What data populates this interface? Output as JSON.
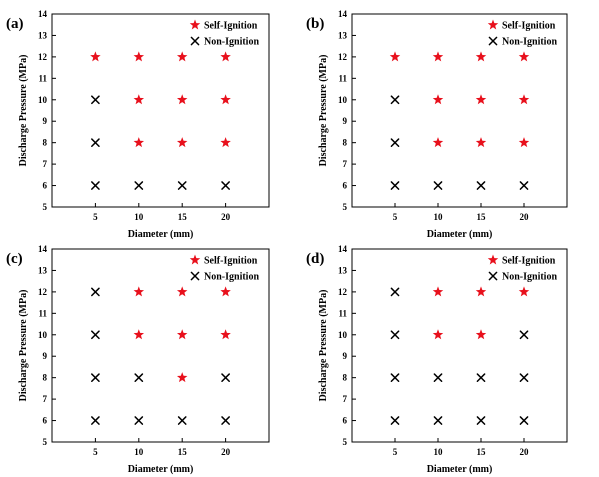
{
  "chart_data": [
    {
      "type": "scatter",
      "panel_label": "(a)",
      "xlabel": "Diameter (mm)",
      "ylabel": "Discharge Pressure (MPa)",
      "xticks": [
        5,
        10,
        15,
        20
      ],
      "yticks": [
        5,
        6,
        7,
        8,
        9,
        10,
        11,
        12,
        13,
        14
      ],
      "xlim": [
        0,
        25
      ],
      "ylim": [
        5,
        14
      ],
      "legend_position": "top-right",
      "series": [
        {
          "name": "Self-Ignition",
          "marker": "star",
          "color": "#e8101c",
          "points": [
            [
              5,
              12
            ],
            [
              10,
              12
            ],
            [
              15,
              12
            ],
            [
              20,
              12
            ],
            [
              10,
              10
            ],
            [
              15,
              10
            ],
            [
              20,
              10
            ],
            [
              10,
              8
            ],
            [
              15,
              8
            ],
            [
              20,
              8
            ]
          ]
        },
        {
          "name": "Non-Ignition",
          "marker": "x",
          "color": "#000000",
          "points": [
            [
              5,
              10
            ],
            [
              5,
              8
            ],
            [
              5,
              6
            ],
            [
              10,
              6
            ],
            [
              15,
              6
            ],
            [
              20,
              6
            ]
          ]
        }
      ]
    },
    {
      "type": "scatter",
      "panel_label": "(b)",
      "xlabel": "Diameter (mm)",
      "ylabel": "Discharge Pressure (MPa)",
      "xticks": [
        5,
        10,
        15,
        20
      ],
      "yticks": [
        5,
        6,
        7,
        8,
        9,
        10,
        11,
        12,
        13,
        14
      ],
      "xlim": [
        0,
        25
      ],
      "ylim": [
        5,
        14
      ],
      "legend_position": "top-right",
      "series": [
        {
          "name": "Self-Ignition",
          "marker": "star",
          "color": "#e8101c",
          "points": [
            [
              5,
              12
            ],
            [
              10,
              12
            ],
            [
              15,
              12
            ],
            [
              20,
              12
            ],
            [
              10,
              10
            ],
            [
              15,
              10
            ],
            [
              20,
              10
            ],
            [
              10,
              8
            ],
            [
              15,
              8
            ],
            [
              20,
              8
            ]
          ]
        },
        {
          "name": "Non-Ignition",
          "marker": "x",
          "color": "#000000",
          "points": [
            [
              5,
              10
            ],
            [
              5,
              8
            ],
            [
              5,
              6
            ],
            [
              10,
              6
            ],
            [
              15,
              6
            ],
            [
              20,
              6
            ]
          ]
        }
      ]
    },
    {
      "type": "scatter",
      "panel_label": "(c)",
      "xlabel": "Diameter (mm)",
      "ylabel": "Discharge Pressure (MPa)",
      "xticks": [
        5,
        10,
        15,
        20
      ],
      "yticks": [
        5,
        6,
        7,
        8,
        9,
        10,
        11,
        12,
        13,
        14
      ],
      "xlim": [
        0,
        25
      ],
      "ylim": [
        5,
        14
      ],
      "legend_position": "top-right",
      "series": [
        {
          "name": "Self-Ignition",
          "marker": "star",
          "color": "#e8101c",
          "points": [
            [
              10,
              12
            ],
            [
              15,
              12
            ],
            [
              20,
              12
            ],
            [
              10,
              10
            ],
            [
              15,
              10
            ],
            [
              20,
              10
            ],
            [
              15,
              8
            ]
          ]
        },
        {
          "name": "Non-Ignition",
          "marker": "x",
          "color": "#000000",
          "points": [
            [
              5,
              12
            ],
            [
              5,
              10
            ],
            [
              5,
              8
            ],
            [
              10,
              8
            ],
            [
              20,
              8
            ],
            [
              5,
              6
            ],
            [
              10,
              6
            ],
            [
              15,
              6
            ],
            [
              20,
              6
            ]
          ]
        }
      ]
    },
    {
      "type": "scatter",
      "panel_label": "(d)",
      "xlabel": "Diameter (mm)",
      "ylabel": "Discharge Pressure (MPa)",
      "xticks": [
        5,
        10,
        15,
        20
      ],
      "yticks": [
        5,
        6,
        7,
        8,
        9,
        10,
        11,
        12,
        13,
        14
      ],
      "xlim": [
        0,
        25
      ],
      "ylim": [
        5,
        14
      ],
      "legend_position": "top-right",
      "series": [
        {
          "name": "Self-Ignition",
          "marker": "star",
          "color": "#e8101c",
          "points": [
            [
              10,
              12
            ],
            [
              15,
              12
            ],
            [
              20,
              12
            ],
            [
              10,
              10
            ],
            [
              15,
              10
            ]
          ]
        },
        {
          "name": "Non-Ignition",
          "marker": "x",
          "color": "#000000",
          "points": [
            [
              5,
              12
            ],
            [
              5,
              10
            ],
            [
              20,
              10
            ],
            [
              5,
              8
            ],
            [
              10,
              8
            ],
            [
              15,
              8
            ],
            [
              20,
              8
            ],
            [
              5,
              6
            ],
            [
              10,
              6
            ],
            [
              15,
              6
            ],
            [
              20,
              6
            ]
          ]
        }
      ]
    }
  ]
}
